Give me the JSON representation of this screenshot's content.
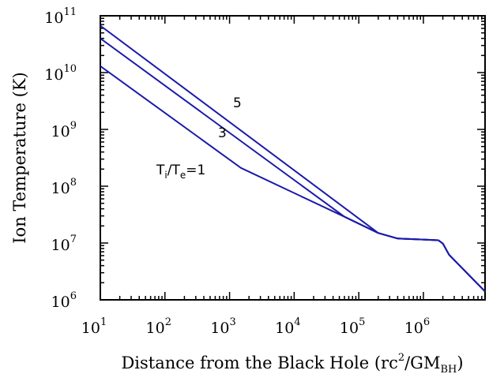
{
  "chart_data": {
    "type": "line",
    "title": "",
    "xlabel": {
      "text": "Distance from the Black Hole (rc",
      "sup": "2",
      "mid": "/GM",
      "sub": "BH",
      "end": ")"
    },
    "ylabel": "Ion Temperature (K)",
    "xscale": "log",
    "yscale": "log",
    "xlim": [
      10,
      9000000
    ],
    "ylim": [
      1000000,
      100000000000
    ],
    "grid": false,
    "line_color": "#1a1aaa",
    "x_ticks": [
      {
        "base": "10",
        "exp": "1",
        "value": 10
      },
      {
        "base": "10",
        "exp": "2",
        "value": 100
      },
      {
        "base": "10",
        "exp": "3",
        "value": 1000
      },
      {
        "base": "10",
        "exp": "4",
        "value": 10000
      },
      {
        "base": "10",
        "exp": "5",
        "value": 100000
      },
      {
        "base": "10",
        "exp": "6",
        "value": 1000000
      }
    ],
    "y_ticks": [
      {
        "base": "10",
        "exp": "6",
        "value": 1000000
      },
      {
        "base": "10",
        "exp": "7",
        "value": 10000000
      },
      {
        "base": "10",
        "exp": "8",
        "value": 100000000
      },
      {
        "base": "10",
        "exp": "9",
        "value": 1000000000
      },
      {
        "base": "10",
        "exp": "10",
        "value": 10000000000
      },
      {
        "base": "10",
        "exp": "11",
        "value": 100000000000
      }
    ],
    "series": [
      {
        "label": {
          "prefix": "T",
          "sub1": "i",
          "mid": "/T",
          "sub2": "e",
          "suffix": "=1"
        },
        "points": [
          [
            10,
            13000000000
          ],
          [
            1500,
            210000000
          ],
          [
            60000,
            29000000
          ],
          [
            200000,
            15000000
          ],
          [
            400000,
            12000000
          ],
          [
            1000000,
            11500000
          ],
          [
            1700000,
            11200000
          ],
          [
            2000000,
            9800000
          ],
          [
            2500000,
            6200000
          ],
          [
            9000000,
            1400000
          ]
        ]
      },
      {
        "label": {
          "prefix": "3"
        },
        "points": [
          [
            10,
            40000000000
          ],
          [
            60000,
            29000000
          ],
          [
            200000,
            15000000
          ],
          [
            400000,
            12000000
          ],
          [
            1000000,
            11500000
          ],
          [
            1700000,
            11200000
          ],
          [
            2000000,
            9800000
          ],
          [
            2500000,
            6200000
          ],
          [
            9000000,
            1400000
          ]
        ]
      },
      {
        "label": {
          "prefix": "5"
        },
        "points": [
          [
            10,
            67000000000
          ],
          [
            200000,
            15000000
          ],
          [
            400000,
            12000000
          ],
          [
            1000000,
            11500000
          ],
          [
            1700000,
            11200000
          ],
          [
            2000000,
            9800000
          ],
          [
            2500000,
            6200000
          ],
          [
            9000000,
            1400000
          ]
        ]
      }
    ]
  }
}
